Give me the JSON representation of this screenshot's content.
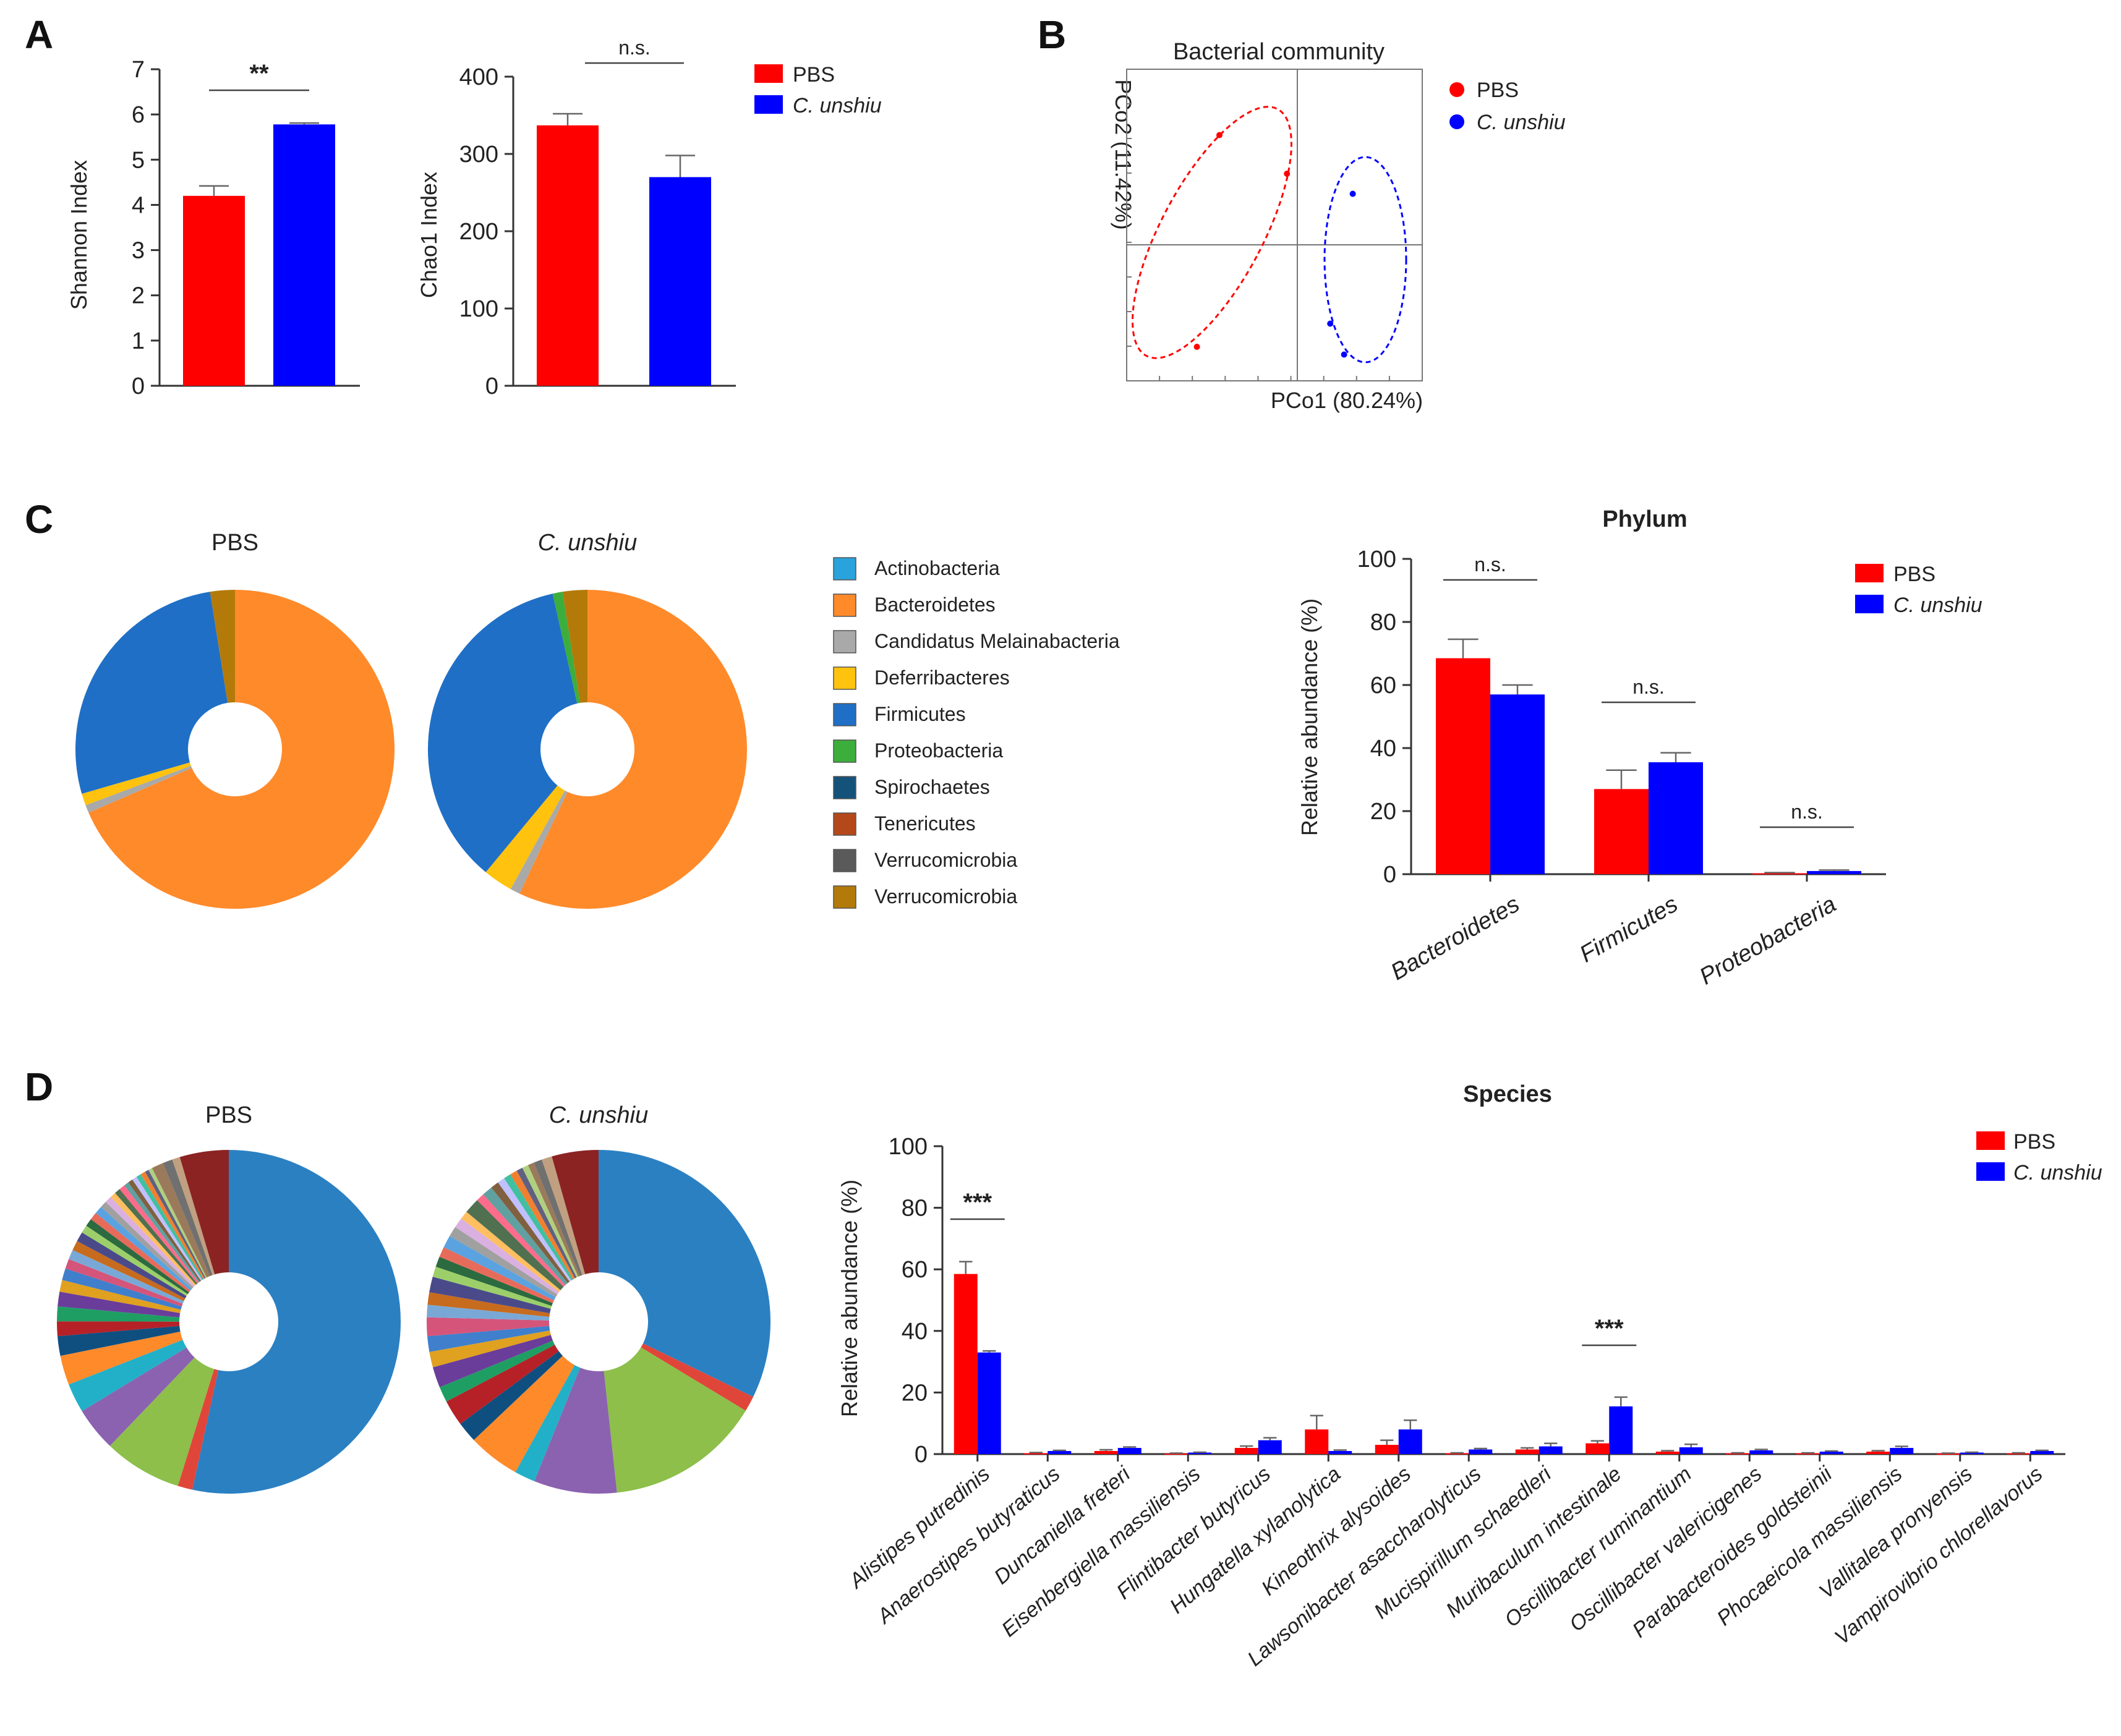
{
  "colors": {
    "pbs": "#ff0000",
    "unshiu": "#0000ff",
    "axis": "#333333",
    "grid": "#888888"
  },
  "panels": {
    "A": "A",
    "B": "B",
    "C": "C",
    "D": "D"
  },
  "legend": {
    "pbs": "PBS",
    "unshiu": "C. unshiu"
  },
  "chart_data": [
    {
      "id": "shannon",
      "type": "bar",
      "ylabel": "Shannon Index",
      "ylim": [
        0,
        7
      ],
      "yticks": [
        0,
        1,
        2,
        3,
        4,
        5,
        6,
        7
      ],
      "categories": [
        "PBS",
        "C. unshiu"
      ],
      "values": [
        4.2,
        5.78
      ],
      "errors": [
        0.22,
        0.03
      ],
      "significance": "**"
    },
    {
      "id": "chao1",
      "type": "bar",
      "ylabel": "Chao1 Index",
      "ylim": [
        0,
        400
      ],
      "yticks": [
        0,
        100,
        200,
        300,
        400
      ],
      "categories": [
        "PBS",
        "C. unshiu"
      ],
      "values": [
        337,
        270
      ],
      "errors": [
        15,
        28
      ],
      "significance": "n.s."
    },
    {
      "id": "pcoa",
      "type": "scatter",
      "title": "Bacterial community",
      "xlabel": "PCo1 (80.24%)",
      "ylabel": "PCo2 (11.42%)",
      "series": [
        {
          "name": "PBS",
          "points": [
            [
              -0.45,
              0.71
            ],
            [
              -0.06,
              0.46
            ],
            [
              -0.58,
              -0.66
            ]
          ]
        },
        {
          "name": "C. unshiu",
          "points": [
            [
              0.32,
              0.33
            ],
            [
              0.19,
              -0.51
            ],
            [
              0.27,
              -0.71
            ]
          ]
        }
      ]
    },
    {
      "id": "pie_phylum_pbs",
      "type": "pie",
      "title": "PBS",
      "labels": [
        "Bacteroidetes",
        "Candidatus Melainabacteria",
        "Deferribacteres",
        "Firmicutes",
        "Verrucomicrobia"
      ],
      "values": [
        68.5,
        0.8,
        1.2,
        27.0,
        2.5
      ]
    },
    {
      "id": "pie_phylum_unshiu",
      "type": "pie",
      "title": "C. unshiu",
      "labels": [
        "Bacteroidetes",
        "Candidatus Melainabacteria",
        "Deferribacteres",
        "Firmicutes",
        "Proteobacteria",
        "Verrucomicrobia"
      ],
      "values": [
        57.0,
        1.0,
        3.0,
        35.5,
        1.0,
        2.5
      ]
    },
    {
      "id": "phylum_legend",
      "type": "legend",
      "entries": [
        {
          "label": "Actinobacteria",
          "color": "#29a3dc"
        },
        {
          "label": "Bacteroidetes",
          "color": "#ff8a2a"
        },
        {
          "label": "Candidatus Melainabacteria",
          "color": "#a9a9a9"
        },
        {
          "label": "Deferribacteres",
          "color": "#ffc20e"
        },
        {
          "label": "Firmicutes",
          "color": "#1f6fc6"
        },
        {
          "label": "Proteobacteria",
          "color": "#3cae3c"
        },
        {
          "label": "Spirochaetes",
          "color": "#15527a"
        },
        {
          "label": "Tenericutes",
          "color": "#b5481a"
        },
        {
          "label": "Verrucomicrobia",
          "color": "#5a5a5a"
        },
        {
          "label": "Verrucomicrobia",
          "color": "#b37a0a"
        }
      ]
    },
    {
      "id": "phylum_bar",
      "type": "bar",
      "title": "Phylum",
      "ylabel": "Relative abundance (%)",
      "ylim": [
        0,
        100
      ],
      "yticks": [
        0,
        20,
        40,
        60,
        80,
        100
      ],
      "categories": [
        "Bacteroidetes",
        "Firmicutes",
        "Proteobacteria"
      ],
      "series": [
        {
          "name": "PBS",
          "values": [
            68.5,
            27.0,
            0.3
          ],
          "errors": [
            6,
            6,
            0.2
          ]
        },
        {
          "name": "C. unshiu",
          "values": [
            57.0,
            35.5,
            1.0
          ],
          "errors": [
            3,
            3,
            0.3
          ]
        }
      ],
      "significance": [
        "n.s.",
        "n.s.",
        "n.s."
      ]
    },
    {
      "id": "pie_species_pbs",
      "type": "pie",
      "title": "PBS",
      "values": [
        58,
        1.5,
        8,
        4.5,
        3,
        3,
        2,
        1.5,
        1.5,
        1.5,
        1.2,
        1.2,
        1,
        1,
        1,
        1,
        0.8,
        0.8,
        0.8,
        0.8,
        0.7,
        0.7,
        0.6,
        0.6,
        0.6,
        0.5,
        0.5,
        0.5,
        0.5,
        0.5,
        0.4,
        0.4,
        1.2,
        1.0,
        0.8,
        5.0
      ]
    },
    {
      "id": "pie_species_unshiu",
      "type": "pie",
      "title": "C. unshiu",
      "values": [
        33,
        1.5,
        15,
        8,
        2,
        5,
        2,
        2.5,
        1.5,
        2,
        1.5,
        1.5,
        1.8,
        1.2,
        1.2,
        1.5,
        1,
        1,
        1,
        1.2,
        1,
        1,
        0.8,
        1.5,
        0.8,
        1,
        0.8,
        0.7,
        0.7,
        0.7,
        0.6,
        0.6,
        0.6,
        0.8,
        1.0,
        4.5
      ]
    },
    {
      "id": "species_bar",
      "type": "bar",
      "title": "Species",
      "ylabel": "Relative abundance (%)",
      "ylim": [
        0,
        100
      ],
      "yticks": [
        0,
        20,
        40,
        60,
        80,
        100
      ],
      "categories": [
        "Alistipes putredinis",
        "Anaerostipes butyraticus",
        "Duncaniella freteri",
        "Eisenbergiella massiliensis",
        "Flintibacter butyricus",
        "Hungatella xylanolytica",
        "Kineothrix alysoides",
        "Lawsonibacter asaccharolyticus",
        "Mucispirillum schaedleri",
        "Muribaculum intestinale",
        "Oscillibacter ruminantium",
        "Oscillibacter valericigenes",
        "Parabacteroides goldsteinii",
        "Phocaeicola massiliensis",
        "Vallitalea pronyensis",
        "Vampirovibrio chlorellavorus"
      ],
      "series": [
        {
          "name": "PBS",
          "values": [
            58.5,
            0.3,
            1.0,
            0.2,
            2.0,
            8.0,
            3.0,
            0.3,
            1.5,
            3.5,
            0.8,
            0.3,
            0.3,
            0.8,
            0.2,
            0.3
          ],
          "errors": [
            4,
            0.2,
            0.4,
            0.1,
            0.6,
            4.5,
            1.5,
            0.1,
            0.5,
            0.8,
            0.3,
            0.1,
            0.1,
            0.3,
            0.1,
            0.1
          ]
        },
        {
          "name": "C. unshiu",
          "values": [
            33.0,
            1.0,
            2.0,
            0.5,
            4.5,
            1.0,
            8.0,
            1.5,
            2.5,
            15.5,
            2.2,
            1.2,
            0.8,
            2.0,
            0.5,
            1.0
          ],
          "errors": [
            0.5,
            0.2,
            0.3,
            0.1,
            0.8,
            0.3,
            3.0,
            0.3,
            1.0,
            3.0,
            1.0,
            0.3,
            0.2,
            0.5,
            0.1,
            0.2
          ]
        }
      ],
      "significance": [
        {
          "index": 0,
          "label": "***"
        },
        {
          "index": 9,
          "label": "***"
        }
      ]
    }
  ]
}
